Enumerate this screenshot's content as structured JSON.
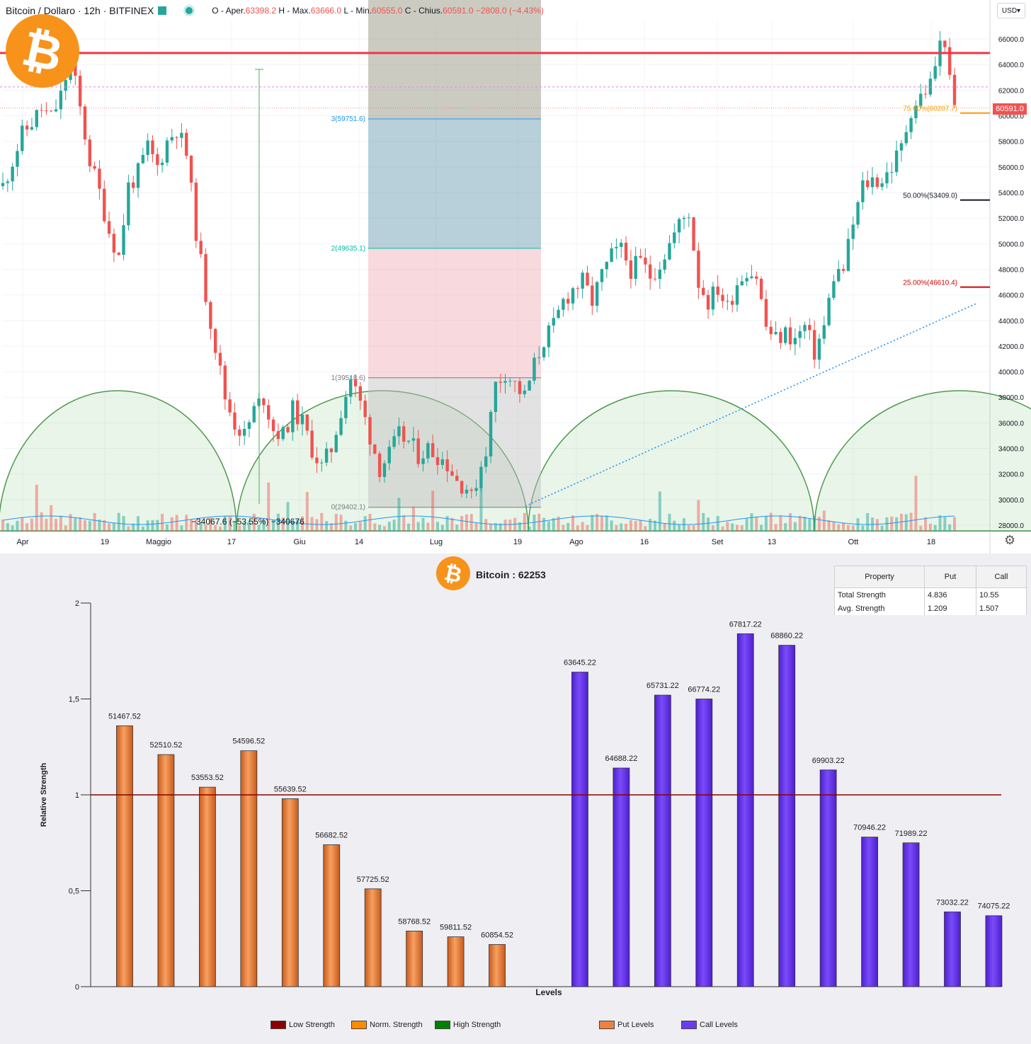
{
  "header": {
    "symbol": "Bitcoin / Dollaro · 12h · BITFINEX",
    "ohlc_open_label": "O - Aper.",
    "ohlc_open": "63398.2",
    "ohlc_high_label": "H - Max.",
    "ohlc_high": "63666.0",
    "ohlc_low_label": "L - Min.",
    "ohlc_low": "60555.0",
    "ohlc_close_label": "C - Chius.",
    "ohlc_close": "60591.0",
    "ohlc_change": "−2808.0 (−4.43%)",
    "currency": "USD",
    "last_price": "60591.0"
  },
  "chart_data": [
    {
      "type": "line",
      "title": "Bitcoin / Dollaro · 12h · BITFINEX",
      "x_tick_labels": [
        "Apr",
        "19",
        "Maggio",
        "17",
        "Giu",
        "14",
        "Lug",
        "19",
        "Ago",
        "16",
        "Set",
        "13",
        "Ott",
        "18"
      ],
      "y_tick_labels": [
        "66000.0",
        "64000.0",
        "62000.0",
        "60000.0",
        "58000.0",
        "56000.0",
        "54000.0",
        "52000.0",
        "50000.0",
        "48000.0",
        "46000.0",
        "44000.0",
        "42000.0",
        "40000.0",
        "38000.0",
        "36000.0",
        "34000.0",
        "32000.0",
        "30000.0",
        "28000.0"
      ],
      "ylim": [
        27200,
        67500
      ],
      "price_path": [
        [
          0,
          54500
        ],
        [
          4,
          58500
        ],
        [
          8,
          60500
        ],
        [
          10,
          59800
        ],
        [
          12,
          61500
        ],
        [
          14,
          64500
        ],
        [
          16,
          60500
        ],
        [
          18,
          56500
        ],
        [
          20,
          54000
        ],
        [
          22,
          51000
        ],
        [
          24,
          49000
        ],
        [
          26,
          54500
        ],
        [
          28,
          55500
        ],
        [
          30,
          57500
        ],
        [
          32,
          56000
        ],
        [
          34,
          58000
        ],
        [
          36,
          59000
        ],
        [
          38,
          57000
        ],
        [
          40,
          51000
        ],
        [
          42,
          46000
        ],
        [
          44,
          42000
        ],
        [
          46,
          38000
        ],
        [
          48,
          36000
        ],
        [
          50,
          35000
        ],
        [
          52,
          37000
        ],
        [
          54,
          38000
        ],
        [
          56,
          35500
        ],
        [
          58,
          35000
        ],
        [
          60,
          37000
        ],
        [
          62,
          36000
        ],
        [
          64,
          34000
        ],
        [
          66,
          32500
        ],
        [
          68,
          34000
        ],
        [
          70,
          37000
        ],
        [
          72,
          39500
        ],
        [
          74,
          37500
        ],
        [
          76,
          35000
        ],
        [
          78,
          32500
        ],
        [
          80,
          33500
        ],
        [
          82,
          35000
        ],
        [
          84,
          34500
        ],
        [
          86,
          33500
        ],
        [
          88,
          34000
        ],
        [
          90,
          33500
        ],
        [
          92,
          32800
        ],
        [
          94,
          31500
        ],
        [
          96,
          31000
        ],
        [
          97,
          30000
        ],
        [
          98,
          31500
        ],
        [
          100,
          34000
        ],
        [
          102,
          39000
        ],
        [
          104,
          40000
        ],
        [
          106,
          39000
        ],
        [
          108,
          38000
        ],
        [
          110,
          40500
        ],
        [
          112,
          42500
        ],
        [
          114,
          43500
        ],
        [
          116,
          45500
        ],
        [
          118,
          46500
        ],
        [
          120,
          47000
        ],
        [
          122,
          45500
        ],
        [
          124,
          47500
        ],
        [
          126,
          49000
        ],
        [
          128,
          49500
        ],
        [
          130,
          48000
        ],
        [
          132,
          48500
        ],
        [
          134,
          47500
        ],
        [
          136,
          48500
        ],
        [
          138,
          50000
        ],
        [
          140,
          51500
        ],
        [
          142,
          52500
        ],
        [
          144,
          47000
        ],
        [
          146,
          45500
        ],
        [
          148,
          46500
        ],
        [
          150,
          45000
        ],
        [
          152,
          47000
        ],
        [
          154,
          48000
        ],
        [
          156,
          47500
        ],
        [
          158,
          43500
        ],
        [
          160,
          42500
        ],
        [
          162,
          43000
        ],
        [
          164,
          42500
        ],
        [
          166,
          43500
        ],
        [
          168,
          41500
        ],
        [
          170,
          43500
        ],
        [
          172,
          47500
        ],
        [
          174,
          48000
        ],
        [
          176,
          51500
        ],
        [
          178,
          54500
        ],
        [
          180,
          55000
        ],
        [
          182,
          55000
        ],
        [
          184,
          56000
        ],
        [
          186,
          57500
        ],
        [
          188,
          60500
        ],
        [
          190,
          61500
        ],
        [
          192,
          62500
        ],
        [
          194,
          65500
        ],
        [
          195,
          66000
        ],
        [
          196,
          62500
        ],
        [
          197,
          60591
        ]
      ],
      "hlines": [
        {
          "label": "",
          "value": 64900,
          "color": "#f23645"
        },
        {
          "label": "",
          "value": 62250,
          "color": "#f28ad8"
        }
      ],
      "fib_labels": [
        {
          "label": "3(59751.6)",
          "value": 59751.6,
          "color": "#2196f3"
        },
        {
          "label": "2(49635.1)",
          "value": 49635.1,
          "color": "#00bfa5"
        },
        {
          "label": "1(39518.6)",
          "value": 39518.6,
          "color": "#787b86"
        },
        {
          "label": "0(29402.1)",
          "value": 29402.1,
          "color": "#787b86"
        }
      ],
      "pct_labels": [
        {
          "label": "75.00%(60207.7)",
          "value": 60207.7,
          "color": "#ff9800"
        },
        {
          "label": "50.00%(53409.0)",
          "value": 53409.0,
          "color": "#131722"
        },
        {
          "label": "25.00%(46610.4)",
          "value": 46610.4,
          "color": "#d50000"
        }
      ],
      "measure_label": "−34067.6 (−53.55%) −340676"
    },
    {
      "type": "bar",
      "title": "Bitcoin : 62253",
      "xlabel": "Levels",
      "ylabel": "Relative Strength",
      "y_tick_labels": [
        "2",
        "1,5",
        "1",
        "0,5",
        "0"
      ],
      "ylim": [
        0,
        2
      ],
      "reference_line": 1,
      "series": [
        {
          "name": "Put Levels",
          "color": "#f08040",
          "categories": [
            "51467.52",
            "52510.52",
            "53553.52",
            "54596.52",
            "55639.52",
            "56682.52",
            "57725.52",
            "58768.52",
            "59811.52",
            "60854.52"
          ],
          "values": [
            1.36,
            1.21,
            1.04,
            1.23,
            0.98,
            0.74,
            0.51,
            0.29,
            0.26,
            0.22
          ]
        },
        {
          "name": "Call Levels",
          "color": "#6a3cf0",
          "categories": [
            "63645.22",
            "64688.22",
            "65731.22",
            "66774.22",
            "67817.22",
            "68860.22",
            "69903.22",
            "70946.22",
            "71989.22",
            "73032.22",
            "74075.22"
          ],
          "values": [
            1.64,
            1.14,
            1.52,
            1.5,
            1.84,
            1.78,
            1.13,
            0.78,
            0.75,
            0.39,
            0.37
          ]
        }
      ],
      "legend": [
        {
          "label": "Low Strength",
          "color": "#8b0000"
        },
        {
          "label": "Norm. Strength",
          "color": "#ff8c00"
        },
        {
          "label": "High Strength",
          "color": "#008000"
        },
        {
          "label": "Put Levels",
          "color": "#f08040"
        },
        {
          "label": "Call Levels",
          "color": "#6a3cf0"
        }
      ]
    }
  ],
  "stats": {
    "headers": [
      "Property",
      "Put",
      "Call"
    ],
    "rows": [
      {
        "name": "Total Strength",
        "put": "4.836",
        "call": "10.55"
      },
      {
        "name": "Avg. Strength",
        "put": "1.209",
        "call": "1.507"
      }
    ]
  },
  "logo": {
    "glyph": "₿",
    "color": "#f7931a"
  }
}
